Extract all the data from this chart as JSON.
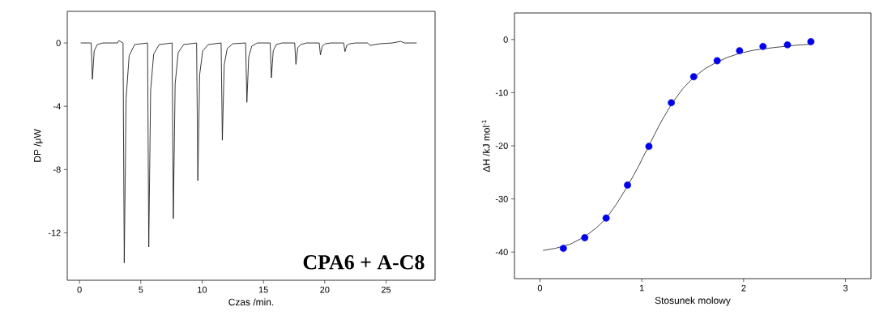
{
  "chart_data": [
    {
      "type": "line",
      "xlabel": "Czas /min.",
      "ylabel": "DP /μW",
      "xlim": [
        -1,
        29
      ],
      "ylim": [
        -15,
        2
      ],
      "xticks": [
        0,
        5,
        10,
        15,
        20,
        25
      ],
      "yticks": [
        0,
        -4,
        -8,
        -12
      ],
      "annotations": [
        "**CPA6 + A-C8**"
      ],
      "series": [
        {
          "color": "#222222",
          "x": [
            0.1,
            0.95,
            1.05,
            1.2,
            1.45,
            1.9,
            3.1,
            3.2,
            3.55,
            3.65,
            3.8,
            4.05,
            4.5,
            5.55,
            5.65,
            5.8,
            6.05,
            6.5,
            7.55,
            7.65,
            7.8,
            8.05,
            8.5,
            9.55,
            9.65,
            9.8,
            10.05,
            10.5,
            11.55,
            11.65,
            11.8,
            12.05,
            12.5,
            13.55,
            13.65,
            13.8,
            14.05,
            14.5,
            15.55,
            15.65,
            15.8,
            16.05,
            16.5,
            17.55,
            17.65,
            17.8,
            18.05,
            18.5,
            19.55,
            19.65,
            19.8,
            20.05,
            20.5,
            21.55,
            21.65,
            21.8,
            22.05,
            22.5,
            23.5,
            23.7,
            24.5,
            25.5,
            26.2,
            26.5,
            27.5
          ],
          "values": [
            0,
            0,
            -2.3,
            -0.5,
            -0.1,
            0,
            0,
            0.15,
            0,
            -13.9,
            -3.5,
            -0.8,
            -0.1,
            0,
            -12.9,
            -3.0,
            -0.7,
            -0.1,
            0,
            -11.1,
            -2.6,
            -0.6,
            -0.1,
            0,
            -8.7,
            -2.0,
            -0.5,
            -0.1,
            0,
            -6.15,
            -1.4,
            -0.35,
            -0.05,
            0,
            -3.75,
            -0.9,
            -0.2,
            0,
            0,
            -2.2,
            -0.5,
            -0.1,
            0,
            0,
            -1.35,
            -0.3,
            -0.1,
            0,
            0,
            -0.75,
            -0.2,
            -0.05,
            0,
            0,
            -0.55,
            -0.15,
            -0.05,
            0,
            0,
            -0.15,
            -0.05,
            0,
            0.1,
            0,
            0
          ]
        }
      ]
    },
    {
      "type": "scatter",
      "xlabel": "Stosunek molowy",
      "ylabel": "ΔH /kJ mol$^{-1}$",
      "xlim": [
        -0.25,
        3.25
      ],
      "ylim": [
        -45,
        5
      ],
      "xticks": [
        0,
        1,
        2,
        3
      ],
      "yticks": [
        0,
        -10,
        -20,
        -30,
        -40
      ],
      "series": [
        {
          "type": "line",
          "color": "#333333",
          "x": [
            0.03,
            0.15,
            0.3,
            0.44,
            0.55,
            0.65,
            0.75,
            0.86,
            0.97,
            1.0,
            1.18,
            1.29,
            1.4,
            1.51,
            1.62,
            1.74,
            1.85,
            1.96,
            2.1,
            2.3,
            2.55,
            2.66
          ],
          "values": [
            -39.7,
            -39.3,
            -38.5,
            -37.1,
            -35.5,
            -33.7,
            -31.0,
            -27.6,
            -23.8,
            -22.6,
            -15.8,
            -12.2,
            -9.3,
            -7.1,
            -5.5,
            -4.2,
            -3.3,
            -2.6,
            -2.0,
            -1.5,
            -1.0,
            -0.9
          ]
        },
        {
          "type": "scatter",
          "color": "#0000ee",
          "marker": "circle",
          "x": [
            0.23,
            0.44,
            0.65,
            0.86,
            1.07,
            1.29,
            1.51,
            1.74,
            1.96,
            2.19,
            2.43,
            2.66
          ],
          "values": [
            -39.3,
            -37.3,
            -33.6,
            -27.4,
            -20.1,
            -11.9,
            -7.0,
            -4.0,
            -2.1,
            -1.3,
            -1.0,
            -0.4
          ]
        }
      ]
    }
  ]
}
